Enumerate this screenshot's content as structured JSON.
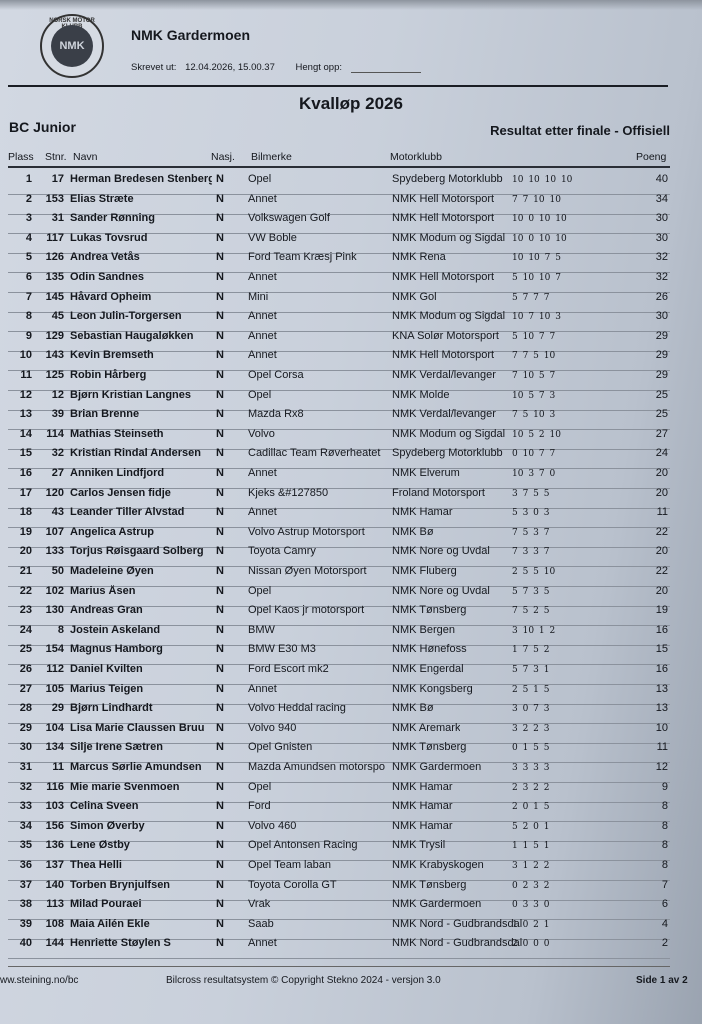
{
  "header": {
    "logo_text": "NORSK MOTOR KLUBB NMK",
    "logo_mark": "NMK",
    "org": "NMK Gardermoen",
    "printed_label": "Skrevet ut:",
    "printed_value": "12.04.2026, 15.00.37",
    "posted_label": "Hengt opp:",
    "title": "Kvalløp 2026",
    "class": "BC Junior",
    "status": "Resultat etter finale - Offisiell"
  },
  "columns": {
    "plass": "Plass",
    "stnr": "Stnr.",
    "navn": "Navn",
    "nasj": "Nasj.",
    "bil": "Bilmerke",
    "klubb": "Motorklubb",
    "poeng": "Poeng"
  },
  "rows": [
    [
      "1",
      "17",
      "Herman Bredesen Stenberg",
      "N",
      "Opel",
      "Spydeberg Motorklubb",
      "10 10 10 10",
      "40"
    ],
    [
      "2",
      "153",
      "Elias Stræte",
      "N",
      "Annet",
      "NMK Hell Motorsport",
      "7 7 10 10",
      "34"
    ],
    [
      "3",
      "31",
      "Sander Rønning",
      "N",
      "Volkswagen Golf",
      "NMK Hell Motorsport",
      "10 0 10 10",
      "30"
    ],
    [
      "4",
      "117",
      "Lukas Tovsrud",
      "N",
      "VW Boble",
      "NMK Modum og Sigdal",
      "10 0 10 10",
      "30"
    ],
    [
      "5",
      "126",
      "Andrea Vetås",
      "N",
      "Ford Team Kræsj Pink",
      "NMK Rena",
      "10 10 7 5",
      "32"
    ],
    [
      "6",
      "135",
      "Odin Sandnes",
      "N",
      "Annet",
      "NMK Hell Motorsport",
      "5 10 10 7",
      "32"
    ],
    [
      "7",
      "145",
      "Håvard Opheim",
      "N",
      "Mini",
      "NMK Gol",
      "5 7 7 7",
      "26"
    ],
    [
      "8",
      "45",
      "Leon Julin-Torgersen",
      "N",
      "Annet",
      "NMK Modum og Sigdal",
      "10 7 10 3",
      "30"
    ],
    [
      "9",
      "129",
      "Sebastian Haugaløkken",
      "N",
      "Annet",
      "KNA Solør Motorsport",
      "5 10 7 7",
      "29"
    ],
    [
      "10",
      "143",
      "Kevin Bremseth",
      "N",
      "Annet",
      "NMK Hell Motorsport",
      "7 7 5 10",
      "29"
    ],
    [
      "11",
      "125",
      "Robin Hårberg",
      "N",
      "Opel Corsa",
      "NMK Verdal/levanger",
      "7 10 5 7",
      "29"
    ],
    [
      "12",
      "12",
      "Bjørn Kristian Langnes",
      "N",
      "Opel",
      "NMK Molde",
      "10 5 7 3",
      "25"
    ],
    [
      "13",
      "39",
      "Brian Brenne",
      "N",
      "Mazda Rx8",
      "NMK Verdal/levanger",
      "7 5 10 3",
      "25"
    ],
    [
      "14",
      "114",
      "Mathias Steinseth",
      "N",
      "Volvo",
      "NMK Modum og Sigdal",
      "10 5 2 10",
      "27"
    ],
    [
      "15",
      "32",
      "Kristian Rindal Andersen",
      "N",
      "Cadillac Team Røverheatet",
      "Spydeberg Motorklubb",
      "0 10 7 7",
      "24"
    ],
    [
      "16",
      "27",
      "Anniken Lindfjord",
      "N",
      "Annet",
      "NMK Elverum",
      "10 3 7 0",
      "20"
    ],
    [
      "17",
      "120",
      "Carlos Jensen fidje",
      "N",
      "Kjeks &#127850",
      "Froland Motorsport",
      "3 7 5 5",
      "20"
    ],
    [
      "18",
      "43",
      "Leander Tiller Alvstad",
      "N",
      "Annet",
      "NMK Hamar",
      "5 3 0 3",
      "11"
    ],
    [
      "19",
      "107",
      "Angelica Astrup",
      "N",
      "Volvo Astrup Motorsport",
      "NMK Bø",
      "7 5 3 7",
      "22"
    ],
    [
      "20",
      "133",
      "Torjus Røisgaard Solberg",
      "N",
      "Toyota Camry",
      "NMK Nore og Uvdal",
      "7 3 3 7",
      "20"
    ],
    [
      "21",
      "50",
      "Madeleine Øyen",
      "N",
      "Nissan Øyen Motorsport",
      "NMK Fluberg",
      "2 5 5 10",
      "22"
    ],
    [
      "22",
      "102",
      "Marius Åsen",
      "N",
      "Opel",
      "NMK Nore og Uvdal",
      "5 7 3 5",
      "20"
    ],
    [
      "23",
      "130",
      "Andreas Gran",
      "N",
      "Opel Kaos jr motorsport",
      "NMK Tønsberg",
      "7 5 2 5",
      "19"
    ],
    [
      "24",
      "8",
      "Jostein Askeland",
      "N",
      "BMW",
      "NMK Bergen",
      "3 10 1 2",
      "16"
    ],
    [
      "25",
      "154",
      "Magnus Hamborg",
      "N",
      "BMW E30 M3",
      "NMK Hønefoss",
      "1 7 5 2",
      "15"
    ],
    [
      "26",
      "112",
      "Daniel Kvilten",
      "N",
      "Ford Escort mk2",
      "NMK Engerdal",
      "5 7 3 1",
      "16"
    ],
    [
      "27",
      "105",
      "Marius Teigen",
      "N",
      "Annet",
      "NMK Kongsberg",
      "2 5 1 5",
      "13"
    ],
    [
      "28",
      "29",
      "Bjørn Lindhardt",
      "N",
      "Volvo Heddal racing",
      "NMK Bø",
      "3 0 7 3",
      "13"
    ],
    [
      "29",
      "104",
      "Lisa Marie Claussen Bruu",
      "N",
      "Volvo 940",
      "NMK Aremark",
      "3 2 2 3",
      "10"
    ],
    [
      "30",
      "134",
      "Silje Irene Sætren",
      "N",
      "Opel Gnisten",
      "NMK Tønsberg",
      "0 1 5 5",
      "11"
    ],
    [
      "31",
      "11",
      "Marcus Sørlie Amundsen",
      "N",
      "Mazda Amundsen motorspo",
      "NMK Gardermoen",
      "3 3 3 3",
      "12"
    ],
    [
      "32",
      "116",
      "Mie marie Svenmoen",
      "N",
      "Opel",
      "NMK Hamar",
      "2 3 2 2",
      "9"
    ],
    [
      "33",
      "103",
      "Celina Sveen",
      "N",
      "Ford",
      "NMK Hamar",
      "2 0 1 5",
      "8"
    ],
    [
      "34",
      "156",
      "Simon Øverby",
      "N",
      "Volvo 460",
      "NMK Hamar",
      "5 2 0 1",
      "8"
    ],
    [
      "35",
      "136",
      "Lene Østby",
      "N",
      "Opel Antonsen Racing",
      "NMK Trysil",
      "1 1 5 1",
      "8"
    ],
    [
      "36",
      "137",
      "Thea Helli",
      "N",
      "Opel Team laban",
      "NMK Krabyskogen",
      "3 1 2 2",
      "8"
    ],
    [
      "37",
      "140",
      "Torben Brynjulfsen",
      "N",
      "Toyota Corolla GT",
      "NMK Tønsberg",
      "0 2 3 2",
      "7"
    ],
    [
      "38",
      "113",
      "Milad Pouraei",
      "N",
      "Vrak",
      "NMK Gardermoen",
      "0 3 3 0",
      "6"
    ],
    [
      "39",
      "108",
      "Maia Ailén Ekle",
      "N",
      "Saab",
      "NMK Nord - Gudbrandsdal",
      "1 0 2 1",
      "4"
    ],
    [
      "40",
      "144",
      "Henriette Støylen S",
      "N",
      "Annet",
      "NMK Nord - Gudbrandsdal",
      "2 0 0 0",
      "2"
    ]
  ],
  "footer": {
    "url": "ww.steining.no/bc",
    "copyright": "Bilcross resultatsystem © Copyright Stekno 2024 - versjon 3.0",
    "page": "Side 1 av 2"
  }
}
